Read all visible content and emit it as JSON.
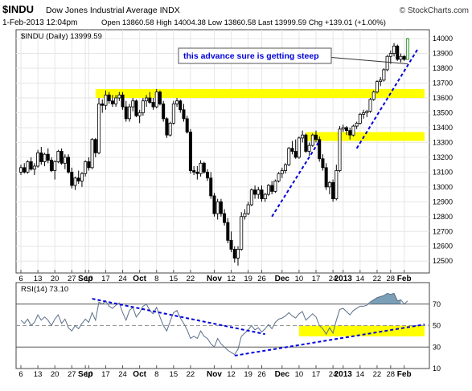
{
  "header": {
    "symbol": "$INDU",
    "name": "Dow Jones Industrial Average INDX",
    "credit": "© StockCharts.com",
    "datetime": "1-Feb-2013 12:04pm",
    "quote": "Open 13860.58  High 14004.38  Low 13860.58  Last 13999.59  Chg +139.01 (+1.00%)",
    "quote_arrow": "▲"
  },
  "colors": {
    "up": "#000000",
    "down": "#000000",
    "highlight": "#ffff00",
    "trendline": "#0000dd",
    "rsi_line": "#5a6f8a",
    "rsi_fill": "#4f7f9f",
    "last_bar": "#008000",
    "panel_bg": "#ffffff",
    "frame": "#444444"
  },
  "chart_data": [
    {
      "type": "candlestick",
      "legend": "$INDU (Daily) 13999.59",
      "ylim": [
        12420,
        14060
      ],
      "yticks": [
        12500,
        12600,
        12700,
        12800,
        12900,
        13000,
        13100,
        13200,
        13300,
        13400,
        13500,
        13600,
        13700,
        13800,
        13900,
        14000
      ],
      "x_ticks": [
        {
          "i": 0,
          "label": "6",
          "bold": false
        },
        {
          "i": 5,
          "label": "13",
          "bold": false
        },
        {
          "i": 10,
          "label": "20",
          "bold": false
        },
        {
          "i": 15,
          "label": "27",
          "bold": false
        },
        {
          "i": 19,
          "label": "Sep",
          "bold": true
        },
        {
          "i": 20,
          "label": "10",
          "bold": false
        },
        {
          "i": 25,
          "label": "17",
          "bold": false
        },
        {
          "i": 30,
          "label": "24",
          "bold": false
        },
        {
          "i": 35,
          "label": "Oct",
          "bold": true
        },
        {
          "i": 40,
          "label": "8",
          "bold": false
        },
        {
          "i": 45,
          "label": "15",
          "bold": false
        },
        {
          "i": 50,
          "label": "22",
          "bold": false
        },
        {
          "i": 57,
          "label": "Nov",
          "bold": true
        },
        {
          "i": 62,
          "label": "12",
          "bold": false
        },
        {
          "i": 67,
          "label": "19",
          "bold": false
        },
        {
          "i": 71,
          "label": "26",
          "bold": false
        },
        {
          "i": 77,
          "label": "Dec",
          "bold": true
        },
        {
          "i": 82,
          "label": "10",
          "bold": false
        },
        {
          "i": 87,
          "label": "17",
          "bold": false
        },
        {
          "i": 92,
          "label": "24",
          "bold": false
        },
        {
          "i": 95,
          "label": "2013",
          "bold": true
        },
        {
          "i": 100,
          "label": "14",
          "bold": false
        },
        {
          "i": 105,
          "label": "22",
          "bold": false
        },
        {
          "i": 109,
          "label": "28",
          "bold": false
        },
        {
          "i": 113,
          "label": "Feb",
          "bold": true
        }
      ],
      "ohlc": [
        [
          13100,
          13150,
          13080,
          13130
        ],
        [
          13130,
          13160,
          13090,
          13100
        ],
        [
          13100,
          13180,
          13090,
          13170
        ],
        [
          13170,
          13200,
          13110,
          13120
        ],
        [
          13120,
          13160,
          13080,
          13140
        ],
        [
          13140,
          13250,
          13130,
          13230
        ],
        [
          13230,
          13270,
          13150,
          13170
        ],
        [
          13170,
          13230,
          13140,
          13220
        ],
        [
          13220,
          13260,
          13160,
          13180
        ],
        [
          13180,
          13200,
          13100,
          13110
        ],
        [
          13110,
          13180,
          13050,
          13170
        ],
        [
          13170,
          13250,
          13160,
          13240
        ],
        [
          13240,
          13260,
          13150,
          13160
        ],
        [
          13160,
          13220,
          13120,
          13200
        ],
        [
          13200,
          13220,
          13090,
          13100
        ],
        [
          13100,
          13130,
          12990,
          13010
        ],
        [
          13010,
          13070,
          12980,
          13060
        ],
        [
          13060,
          13110,
          13020,
          13040
        ],
        [
          13040,
          13100,
          13000,
          13090
        ],
        [
          13090,
          13180,
          13070,
          13170
        ],
        [
          13170,
          13200,
          13110,
          13130
        ],
        [
          13130,
          13330,
          13120,
          13320
        ],
        [
          13320,
          13330,
          13200,
          13230
        ],
        [
          13230,
          13600,
          13220,
          13560
        ],
        [
          13560,
          13590,
          13500,
          13550
        ],
        [
          13550,
          13650,
          13520,
          13620
        ],
        [
          13620,
          13640,
          13560,
          13580
        ],
        [
          13580,
          13620,
          13540,
          13560
        ],
        [
          13560,
          13620,
          13540,
          13600
        ],
        [
          13600,
          13640,
          13580,
          13620
        ],
        [
          13620,
          13640,
          13520,
          13540
        ],
        [
          13540,
          13580,
          13440,
          13460
        ],
        [
          13460,
          13560,
          13440,
          13540
        ],
        [
          13540,
          13600,
          13510,
          13580
        ],
        [
          13580,
          13590,
          13470,
          13480
        ],
        [
          13480,
          13520,
          13430,
          13500
        ],
        [
          13500,
          13600,
          13480,
          13580
        ],
        [
          13580,
          13620,
          13540,
          13600
        ],
        [
          13600,
          13640,
          13560,
          13570
        ],
        [
          13570,
          13600,
          13520,
          13540
        ],
        [
          13540,
          13660,
          13530,
          13640
        ],
        [
          13640,
          13650,
          13550,
          13560
        ],
        [
          13560,
          13580,
          13440,
          13460
        ],
        [
          13460,
          13470,
          13330,
          13350
        ],
        [
          13350,
          13440,
          13340,
          13430
        ],
        [
          13430,
          13580,
          13420,
          13560
        ],
        [
          13560,
          13600,
          13540,
          13580
        ],
        [
          13580,
          13590,
          13500,
          13520
        ],
        [
          13520,
          13560,
          13440,
          13460
        ],
        [
          13460,
          13480,
          13360,
          13370
        ],
        [
          13370,
          13390,
          13090,
          13110
        ],
        [
          13110,
          13140,
          13080,
          13100
        ],
        [
          13100,
          13140,
          13050,
          13090
        ],
        [
          13090,
          13180,
          13070,
          13160
        ],
        [
          13160,
          13170,
          13090,
          13100
        ],
        [
          13100,
          13120,
          13040,
          13060
        ],
        [
          13060,
          13100,
          12920,
          12940
        ],
        [
          12940,
          12960,
          12800,
          12820
        ],
        [
          12820,
          12920,
          12780,
          12900
        ],
        [
          12900,
          12920,
          12800,
          12820
        ],
        [
          12820,
          12850,
          12740,
          12760
        ],
        [
          12760,
          12790,
          12620,
          12640
        ],
        [
          12640,
          12700,
          12560,
          12580
        ],
        [
          12580,
          12600,
          12490,
          12520
        ],
        [
          12520,
          12600,
          12470,
          12580
        ],
        [
          12580,
          12830,
          12570,
          12800
        ],
        [
          12800,
          12850,
          12780,
          12820
        ],
        [
          12820,
          12900,
          12810,
          12880
        ],
        [
          12880,
          12990,
          12870,
          12980
        ],
        [
          12980,
          13010,
          12920,
          12950
        ],
        [
          12950,
          13000,
          12920,
          12980
        ],
        [
          12980,
          13010,
          12900,
          12920
        ],
        [
          12920,
          12960,
          12900,
          12950
        ],
        [
          12950,
          13020,
          12940,
          13010
        ],
        [
          13010,
          13040,
          12950,
          12970
        ],
        [
          12970,
          13050,
          12960,
          13040
        ],
        [
          13040,
          13100,
          13030,
          13090
        ],
        [
          13090,
          13130,
          13060,
          13110
        ],
        [
          13110,
          13160,
          13090,
          13150
        ],
        [
          13150,
          13270,
          13140,
          13260
        ],
        [
          13260,
          13310,
          13220,
          13240
        ],
        [
          13240,
          13320,
          13190,
          13200
        ],
        [
          13200,
          13340,
          13190,
          13330
        ],
        [
          13330,
          13380,
          13300,
          13350
        ],
        [
          13350,
          13360,
          13230,
          13240
        ],
        [
          13240,
          13300,
          13210,
          13280
        ],
        [
          13280,
          13360,
          13270,
          13350
        ],
        [
          13350,
          13380,
          13300,
          13320
        ],
        [
          13320,
          13340,
          13170,
          13190
        ],
        [
          13190,
          13220,
          13110,
          13130
        ],
        [
          13130,
          13160,
          12980,
          13000
        ],
        [
          13000,
          13040,
          12950,
          13030
        ],
        [
          13030,
          13050,
          12900,
          12920
        ],
        [
          12920,
          13150,
          12910,
          13110
        ],
        [
          13110,
          13410,
          13100,
          13390
        ],
        [
          13390,
          13420,
          13370,
          13400
        ],
        [
          13400,
          13410,
          13350,
          13380
        ],
        [
          13380,
          13400,
          13320,
          13350
        ],
        [
          13350,
          13420,
          13340,
          13410
        ],
        [
          13410,
          13440,
          13390,
          13430
        ],
        [
          13430,
          13500,
          13420,
          13490
        ],
        [
          13490,
          13520,
          13460,
          13500
        ],
        [
          13500,
          13520,
          13470,
          13510
        ],
        [
          13510,
          13600,
          13500,
          13590
        ],
        [
          13590,
          13650,
          13580,
          13640
        ],
        [
          13640,
          13720,
          13630,
          13710
        ],
        [
          13710,
          13740,
          13680,
          13720
        ],
        [
          13720,
          13800,
          13710,
          13790
        ],
        [
          13790,
          13890,
          13780,
          13880
        ],
        [
          13880,
          13920,
          13830,
          13900
        ],
        [
          13900,
          13970,
          13880,
          13950
        ],
        [
          13950,
          13960,
          13850,
          13860
        ],
        [
          13860,
          13900,
          13840,
          13880
        ],
        [
          13880,
          13890,
          13850,
          13860
        ],
        [
          13860,
          14004,
          13860,
          13999
        ]
      ],
      "zones": [
        {
          "from": 13600,
          "to": 13660,
          "i_from": 22,
          "i_to": 119
        },
        {
          "from": 13310,
          "to": 13370,
          "i_from": 84,
          "i_to": 119
        }
      ],
      "trendlines": [
        {
          "from": [
            74,
            12800
          ],
          "to": [
            88,
            13310
          ]
        },
        {
          "from": [
            99,
            13260
          ],
          "to": [
            117,
            13930
          ]
        }
      ],
      "annotation": "this advance sure is getting steep"
    },
    {
      "type": "line",
      "legend": "RSI(14) 73.10",
      "ylim": [
        10,
        90
      ],
      "yticks": [
        10,
        30,
        50,
        70
      ],
      "ref_lines": [
        30,
        50,
        70
      ],
      "x_ticks_same_as_price": true,
      "values": [
        55,
        52,
        56,
        50,
        53,
        60,
        55,
        58,
        55,
        50,
        56,
        60,
        52,
        56,
        48,
        45,
        50,
        47,
        52,
        56,
        53,
        62,
        55,
        72,
        70,
        73,
        68,
        66,
        69,
        71,
        62,
        55,
        64,
        67,
        58,
        62,
        68,
        70,
        64,
        61,
        67,
        58,
        50,
        45,
        54,
        62,
        64,
        57,
        52,
        46,
        38,
        40,
        38,
        45,
        40,
        38,
        33,
        30,
        38,
        33,
        30,
        27,
        25,
        23,
        28,
        40,
        43,
        46,
        50,
        46,
        48,
        44,
        47,
        51,
        47,
        53,
        56,
        57,
        59,
        62,
        59,
        57,
        61,
        63,
        55,
        58,
        61,
        58,
        50,
        47,
        42,
        48,
        43,
        55,
        65,
        66,
        63,
        60,
        64,
        66,
        68,
        68,
        69,
        72,
        74,
        76,
        77,
        78,
        80,
        79,
        80,
        73,
        74,
        70,
        73
      ],
      "zones": [
        {
          "from": 40,
          "to": 50,
          "i_from": 82,
          "i_to": 119
        }
      ],
      "trendlines": [
        {
          "from": [
            21,
            75
          ],
          "to": [
            72,
            42
          ]
        },
        {
          "from": [
            63,
            22
          ],
          "to": [
            119,
            51
          ]
        }
      ]
    }
  ]
}
